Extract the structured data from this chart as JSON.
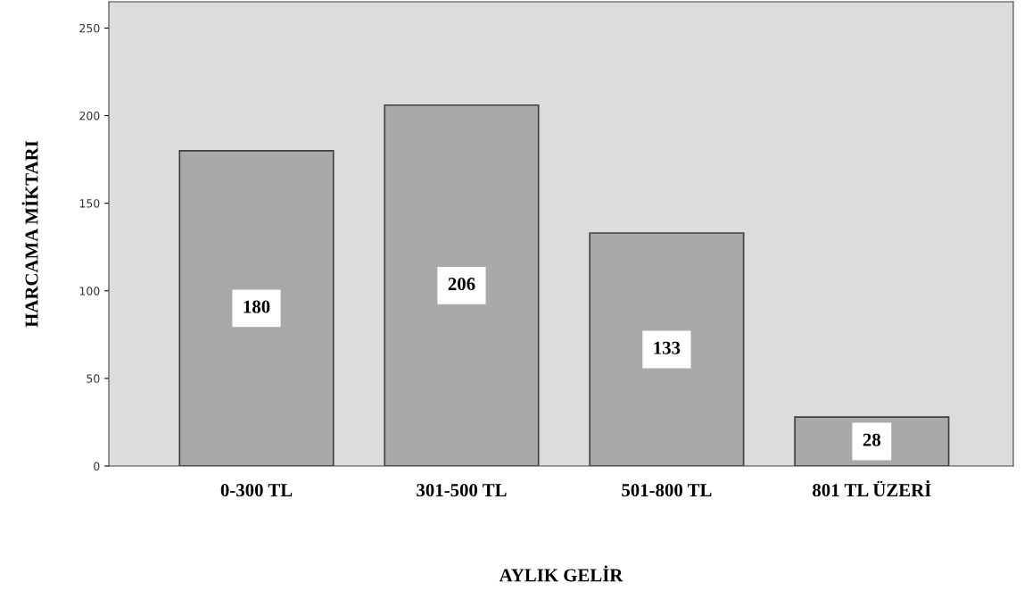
{
  "chart_data": {
    "type": "bar",
    "xlabel": "AYLIK GELİR",
    "ylabel": "HARCAMA MİKTARI",
    "categories": [
      "0-300 TL",
      "301-500 TL",
      "501-800 TL",
      "801 TL ÜZERİ"
    ],
    "values": [
      180,
      206,
      133,
      28
    ],
    "color": "#a9a9a9",
    "ylim": [
      0,
      265
    ],
    "yticks": [
      0,
      50,
      100,
      150,
      200,
      250
    ],
    "grid": false,
    "data_labels": true
  }
}
